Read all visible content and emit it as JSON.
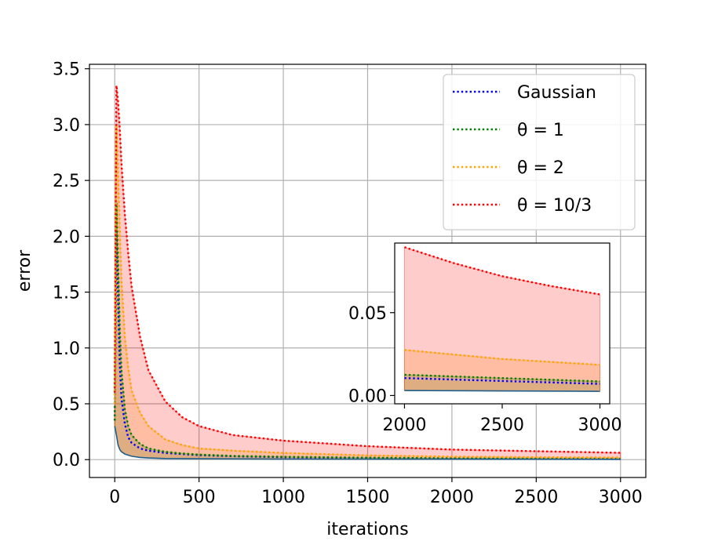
{
  "chart_data": [
    {
      "type": "line",
      "xlabel": "iterations",
      "ylabel": "error",
      "xlim": [
        -150,
        3150
      ],
      "ylim": [
        -0.16,
        3.54
      ],
      "xticks": [
        "0",
        "500",
        "1000",
        "1500",
        "2000",
        "2500",
        "3000"
      ],
      "yticks": [
        "0.0",
        "0.5",
        "1.0",
        "1.5",
        "2.0",
        "2.5",
        "3.0",
        "3.5"
      ],
      "grid": true,
      "legend_position": "top-right",
      "series": [
        {
          "name": "Gaussian",
          "color": "#0000ff",
          "style": "dotted",
          "x": [
            0,
            10,
            20,
            30,
            40,
            60,
            80,
            100,
            150,
            200,
            300,
            400,
            500,
            700,
            1000,
            1500,
            2000,
            2500,
            3000
          ],
          "y": [
            0.35,
            2.05,
            1.45,
            0.85,
            0.55,
            0.32,
            0.2,
            0.15,
            0.1,
            0.08,
            0.06,
            0.05,
            0.04,
            0.03,
            0.022,
            0.015,
            0.01,
            0.008,
            0.006
          ],
          "fill_below": false
        },
        {
          "name": "θ = 1",
          "color": "#008000",
          "style": "dotted",
          "x": [
            0,
            10,
            20,
            30,
            40,
            60,
            80,
            100,
            150,
            200,
            300,
            400,
            500,
            700,
            1000,
            1500,
            2000,
            2500,
            3000
          ],
          "y": [
            0.35,
            2.3,
            1.75,
            1.15,
            0.8,
            0.45,
            0.3,
            0.22,
            0.14,
            0.1,
            0.07,
            0.055,
            0.045,
            0.033,
            0.025,
            0.017,
            0.012,
            0.01,
            0.008
          ],
          "fill_below": true
        },
        {
          "name": "θ = 2",
          "color": "#ffa500",
          "style": "dotted",
          "x": [
            0,
            10,
            20,
            30,
            40,
            60,
            80,
            100,
            150,
            200,
            300,
            400,
            500,
            700,
            1000,
            1500,
            2000,
            2500,
            3000
          ],
          "y": [
            0.5,
            3.0,
            2.55,
            2.05,
            1.6,
            1.1,
            0.82,
            0.62,
            0.42,
            0.3,
            0.18,
            0.13,
            0.1,
            0.08,
            0.06,
            0.038,
            0.027,
            0.022,
            0.018
          ],
          "fill_below": true
        },
        {
          "name": "θ = 10/3",
          "color": "#ff0000",
          "style": "dotted",
          "x": [
            0,
            10,
            20,
            30,
            40,
            60,
            80,
            100,
            150,
            200,
            300,
            400,
            500,
            700,
            1000,
            1500,
            2000,
            2500,
            3000
          ],
          "y": [
            0.6,
            3.35,
            3.2,
            2.95,
            2.65,
            2.2,
            1.85,
            1.55,
            1.1,
            0.8,
            0.52,
            0.38,
            0.3,
            0.22,
            0.17,
            0.12,
            0.09,
            0.075,
            0.061
          ],
          "fill_below": true
        },
        {
          "name": "",
          "color": "#1f5f8b",
          "style": "solid",
          "x": [
            0,
            10,
            20,
            30,
            40,
            60,
            80,
            100,
            150,
            200,
            300,
            500,
            1000,
            2000,
            3000
          ],
          "y": [
            0.3,
            0.22,
            0.13,
            0.09,
            0.07,
            0.05,
            0.04,
            0.03,
            0.02,
            0.015,
            0.01,
            0.008,
            0.005,
            0.004,
            0.003
          ],
          "fill_below": false
        }
      ]
    },
    {
      "type": "line",
      "inset": true,
      "xlim": [
        1950,
        3050
      ],
      "ylim": [
        -0.005,
        0.092
      ],
      "xticks": [
        "2000",
        "2500",
        "3000"
      ],
      "yticks": [
        "0.00",
        "0.05"
      ],
      "grid": false,
      "series": [
        {
          "name": "Gaussian",
          "color": "#0000ff",
          "style": "dotted",
          "x": [
            2000,
            3000
          ],
          "y": [
            0.0105,
            0.007
          ],
          "fill_below": false
        },
        {
          "name": "θ = 1",
          "color": "#008000",
          "style": "dotted",
          "x": [
            2000,
            3000
          ],
          "y": [
            0.0125,
            0.0085
          ],
          "fill_below": true
        },
        {
          "name": "θ = 2",
          "color": "#ffa500",
          "style": "dotted",
          "x": [
            2000,
            2500,
            3000
          ],
          "y": [
            0.0275,
            0.022,
            0.0185
          ],
          "fill_below": true
        },
        {
          "name": "θ = 10/3",
          "color": "#ff0000",
          "style": "dotted",
          "x": [
            2000,
            2250,
            2500,
            2750,
            3000
          ],
          "y": [
            0.0895,
            0.08,
            0.072,
            0.066,
            0.061
          ],
          "fill_below": true
        },
        {
          "name": "",
          "color": "#1f5f8b",
          "style": "solid",
          "x": [
            2000,
            3000
          ],
          "y": [
            0.003,
            0.0025
          ],
          "fill_below": false
        }
      ]
    }
  ]
}
